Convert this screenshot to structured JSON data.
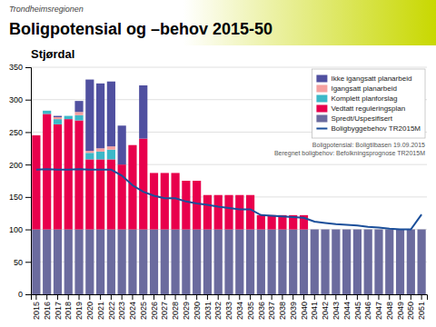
{
  "chart_data": {
    "type": "bar",
    "title": "Boligpotensial og –behov 2015-50",
    "subtitle": "Stjørdal",
    "annotations": [
      "Trondheimsregionen",
      "Boligpotensial: Boligtilbasen 19.09.2015",
      "Beregnet boligbehov: Befolkningsprognose TR2015M"
    ],
    "categories": [
      "2015",
      "2016",
      "2017",
      "2018",
      "2019",
      "2020",
      "2021",
      "2022",
      "2023",
      "2024",
      "2025",
      "2026",
      "2027",
      "2028",
      "2029",
      "2030",
      "2031",
      "2032",
      "2033",
      "2034",
      "2035",
      "2036",
      "2037",
      "2038",
      "2039",
      "2040",
      "2041",
      "2042",
      "2043",
      "2044",
      "2045",
      "2046",
      "2047",
      "2048",
      "2049",
      "2050",
      "2051"
    ],
    "series": [
      {
        "name": "Spredt/Uspesifisert",
        "type": "bar",
        "color": "#6B6B9E",
        "values": [
          100,
          100,
          100,
          100,
          100,
          100,
          100,
          100,
          100,
          100,
          100,
          100,
          100,
          100,
          100,
          100,
          100,
          100,
          100,
          100,
          100,
          100,
          100,
          100,
          100,
          100,
          100,
          100,
          100,
          100,
          100,
          100,
          100,
          100,
          100,
          100,
          100
        ]
      },
      {
        "name": "Vedtatt reguleringsplan",
        "type": "bar",
        "color": "#E8004C",
        "values": [
          145,
          178,
          162,
          170,
          168,
          108,
          108,
          108,
          100,
          130,
          140,
          87,
          87,
          87,
          75,
          75,
          53,
          53,
          53,
          53,
          53,
          22,
          22,
          22,
          22,
          22,
          0,
          0,
          0,
          0,
          0,
          0,
          0,
          0,
          0,
          0,
          0
        ]
      },
      {
        "name": "Komplett planforslag",
        "type": "bar",
        "color": "#3CB8C8",
        "values": [
          0,
          5,
          8,
          5,
          8,
          10,
          12,
          15,
          0,
          0,
          0,
          0,
          0,
          0,
          0,
          0,
          0,
          0,
          0,
          0,
          0,
          0,
          0,
          0,
          0,
          0,
          0,
          0,
          0,
          0,
          0,
          0,
          0,
          0,
          0,
          0,
          0
        ]
      },
      {
        "name": "Igangsatt planarbeid",
        "type": "bar",
        "color": "#F5A0A0",
        "values": [
          0,
          0,
          3,
          0,
          5,
          3,
          5,
          5,
          0,
          0,
          0,
          0,
          0,
          0,
          0,
          0,
          0,
          0,
          0,
          0,
          0,
          0,
          0,
          0,
          0,
          0,
          0,
          0,
          0,
          0,
          0,
          0,
          0,
          0,
          0,
          0,
          0
        ]
      },
      {
        "name": "Ikke igangsatt planarbeid",
        "type": "bar",
        "color": "#5050A0",
        "values": [
          0,
          0,
          2,
          0,
          17,
          110,
          100,
          100,
          60,
          0,
          82,
          0,
          0,
          0,
          0,
          0,
          0,
          0,
          0,
          0,
          0,
          0,
          0,
          0,
          0,
          0,
          0,
          0,
          0,
          0,
          0,
          0,
          0,
          0,
          0,
          0,
          0
        ]
      },
      {
        "name": "Boligbyggebehov TR2015M",
        "type": "line",
        "color": "#1B4F9A",
        "values": [
          192,
          193,
          192,
          192,
          193,
          192,
          192,
          192,
          183,
          168,
          158,
          152,
          148,
          148,
          143,
          140,
          138,
          135,
          133,
          131,
          131,
          122,
          121,
          120,
          119,
          118,
          112,
          110,
          108,
          107,
          106,
          104,
          103,
          101,
          100,
          100,
          123
        ]
      }
    ],
    "stacked": true,
    "ylim": [
      0,
      350
    ],
    "yticks": [
      0,
      50,
      100,
      150,
      200,
      250,
      300,
      350
    ],
    "grid": true,
    "legend": "upper right"
  }
}
